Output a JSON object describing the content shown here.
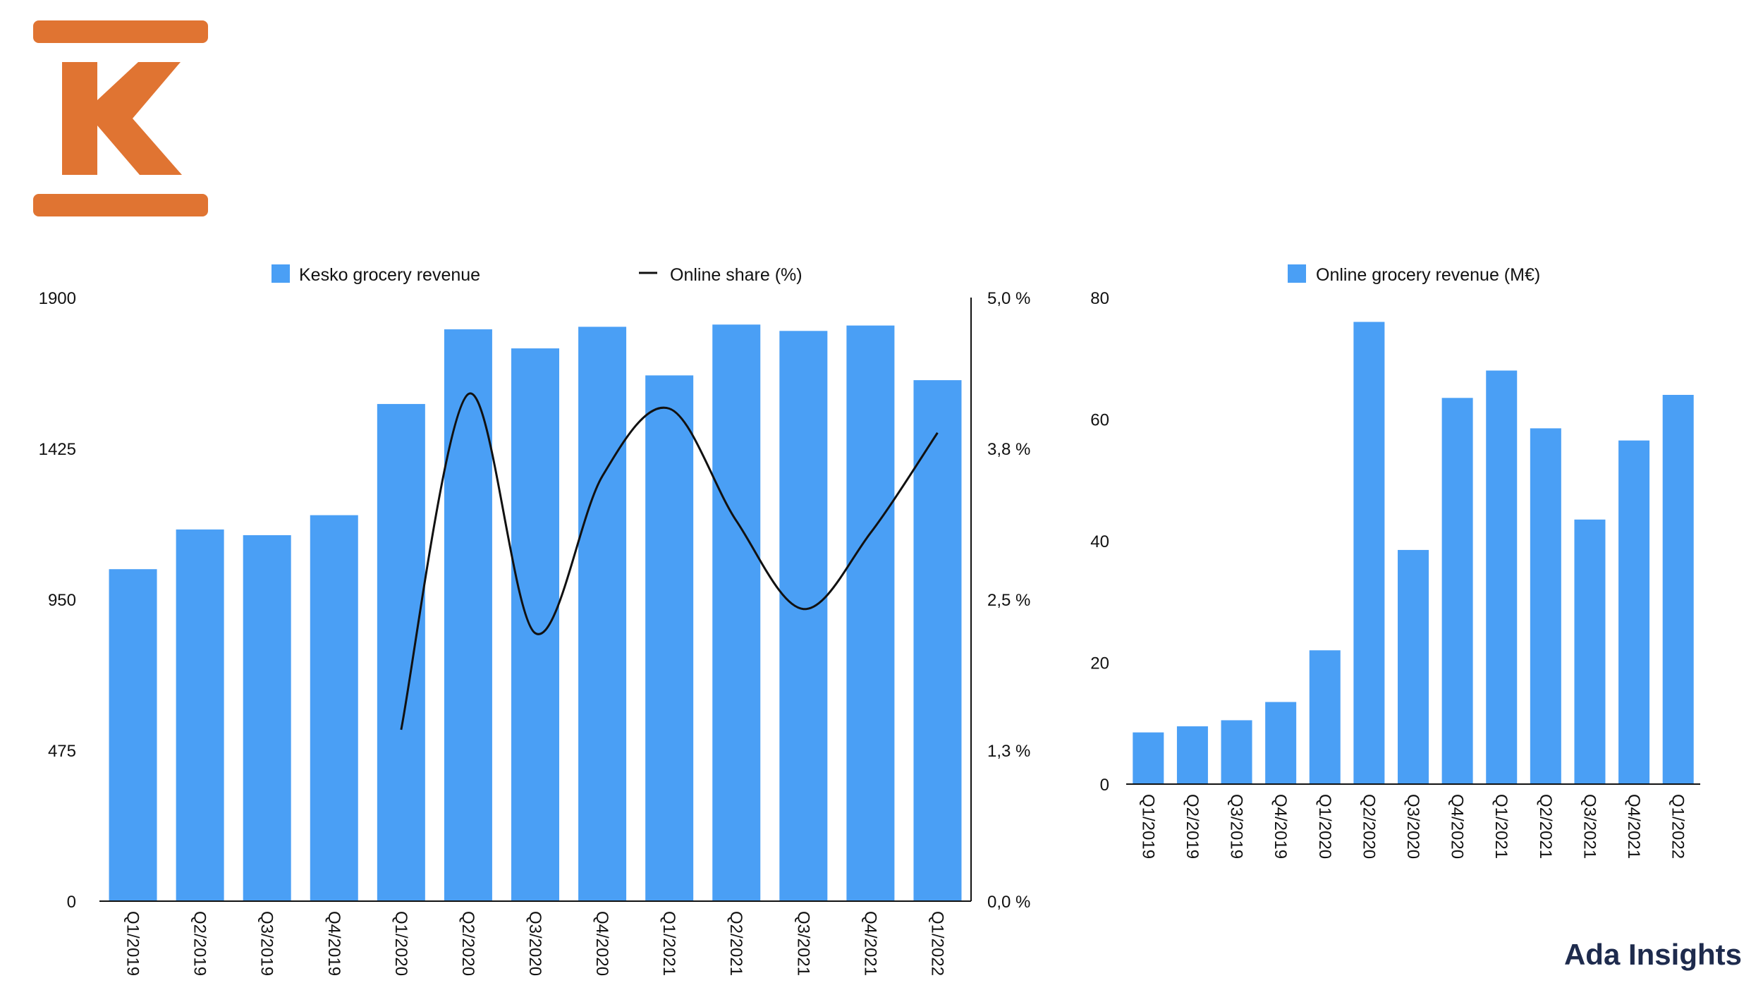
{
  "logo": {
    "name": "Kesko K logo",
    "color": "#e07432"
  },
  "brand": {
    "text": "Ada Insights",
    "color": "#1e2b4d"
  },
  "colors": {
    "bar": "#4a9ff5",
    "line": "#111111",
    "axis": "#111111"
  },
  "chart_data": [
    {
      "type": "bar",
      "categories": [
        "Q1/2019",
        "Q2/2019",
        "Q3/2019",
        "Q4/2019",
        "Q1/2020",
        "Q2/2020",
        "Q3/2020",
        "Q4/2020",
        "Q1/2021",
        "Q2/2021",
        "Q3/2021",
        "Q4/2021",
        "Q1/2022"
      ],
      "series": [
        {
          "name": "Kesko grocery revenue",
          "type": "bar",
          "axis": "left",
          "values": [
            1045,
            1170,
            1152,
            1215,
            1565,
            1800,
            1740,
            1808,
            1655,
            1815,
            1795,
            1812,
            1640
          ]
        },
        {
          "name": "Online share (%)",
          "type": "line",
          "axis": "right",
          "values": [
            null,
            null,
            null,
            null,
            1.42,
            4.2,
            2.22,
            3.52,
            4.08,
            3.15,
            2.42,
            3.05,
            3.88
          ]
        }
      ],
      "y_left": {
        "min": 0,
        "max": 1900,
        "ticks": [
          "0",
          "475",
          "950",
          "1425",
          "1900"
        ]
      },
      "y_right": {
        "min": 0,
        "max": 5.0,
        "ticks": [
          "0,0 %",
          "1,3 %",
          "2,5 %",
          "3,8 %",
          "5,0 %"
        ]
      },
      "grid": false,
      "legend": "top-center"
    },
    {
      "type": "bar",
      "categories": [
        "Q1/2019",
        "Q2/2019",
        "Q3/2019",
        "Q4/2019",
        "Q1/2020",
        "Q2/2020",
        "Q3/2020",
        "Q4/2020",
        "Q1/2021",
        "Q2/2021",
        "Q3/2021",
        "Q4/2021",
        "Q1/2022"
      ],
      "series": [
        {
          "name": "Online grocery revenue (M€)",
          "values": [
            8.5,
            9.5,
            10.5,
            13.5,
            22,
            76,
            38.5,
            63.5,
            68,
            58.5,
            43.5,
            56.5,
            64
          ]
        }
      ],
      "ylim": [
        0,
        80
      ],
      "yticks": [
        "0",
        "20",
        "40",
        "60",
        "80"
      ],
      "grid": false,
      "legend": "top-center"
    }
  ]
}
